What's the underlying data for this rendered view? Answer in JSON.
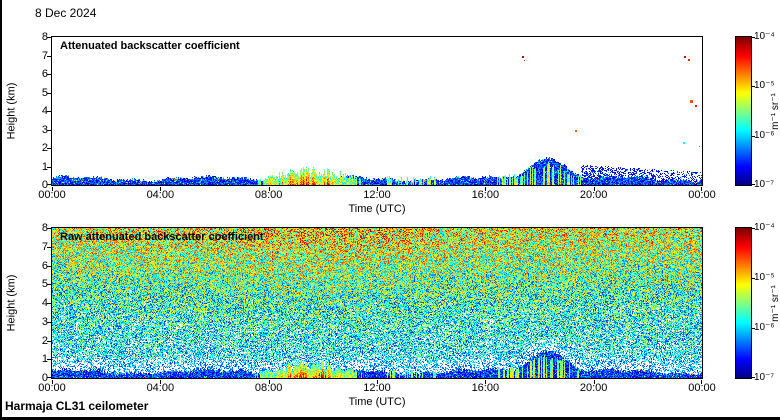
{
  "page": {
    "date_label": "8 Dec 2024",
    "footer_label": "Harmaja CL31 ceilometer",
    "background": "#ffffff",
    "frame_border_color": "#000000"
  },
  "axes": {
    "x_label": "Time (UTC)",
    "y_label": "Height (km)",
    "x_ticks": [
      "00:00",
      "04:00",
      "08:00",
      "12:00",
      "16:00",
      "20:00",
      "00:00"
    ],
    "y_ticks": [
      "0",
      "1",
      "2",
      "3",
      "4",
      "5",
      "6",
      "7",
      "8"
    ],
    "x_range_hours": [
      0,
      24
    ],
    "y_range_km": [
      0,
      8
    ]
  },
  "colorbar": {
    "unit_label": "m⁻¹ sr⁻¹",
    "tick_labels": [
      "10⁻⁴",
      "10⁻⁵",
      "10⁻⁶",
      "10⁻⁷"
    ],
    "range": [
      1e-07,
      0.0001
    ],
    "scale": "log10",
    "colormap": "jet"
  },
  "chart_data": [
    {
      "type": "heatmap",
      "title": "Attenuated backscatter coefficient",
      "style": "clean",
      "seed": 20241208,
      "xlabel": "Time (UTC)",
      "ylabel": "Height (km)",
      "x_ticks": [
        "00:00",
        "04:00",
        "08:00",
        "12:00",
        "16:00",
        "20:00",
        "00:00"
      ],
      "x_range_hours": [
        0,
        24
      ],
      "y_range_km": [
        0,
        8
      ],
      "colorbar_range": [
        1e-07,
        0.0001
      ],
      "colormap": "jet",
      "features": {
        "surface_aerosol_layer": {
          "top_km_mean": 0.45,
          "note": "continuous blue aerosol layer all day"
        },
        "fog_precip_plumes": {
          "hours": [
            7.3,
            11.6
          ],
          "top_km_max": 1.0,
          "note": "strong red/orange columns"
        },
        "midday_surface_patches": {
          "hours": [
            12.3,
            14.2
          ]
        },
        "evening_layer_deepening": {
          "hours": [
            16.4,
            19.5
          ],
          "peak_hour": 18.3,
          "top_km_max": 1.7
        },
        "residual_faint_layer": {
          "hours": [
            19.5,
            24
          ],
          "top_km": 1.1
        },
        "clouds": [
          {
            "hour": 17.35,
            "km": 7.0,
            "v": 0.93,
            "size": 2
          },
          {
            "hour": 17.42,
            "km": 6.75,
            "v": 0.8,
            "size": 1
          },
          {
            "hour": 19.3,
            "km": 3.0,
            "v": 0.78,
            "size": 2
          },
          {
            "hour": 23.35,
            "km": 7.0,
            "v": 0.9,
            "size": 2
          },
          {
            "hour": 23.5,
            "km": 6.8,
            "v": 0.85,
            "size": 2
          },
          {
            "hour": 23.55,
            "km": 4.6,
            "v": 0.8,
            "size": 3
          },
          {
            "hour": 23.75,
            "km": 4.35,
            "v": 0.85,
            "size": 2
          },
          {
            "hour": 23.3,
            "km": 2.3,
            "v": 0.38,
            "size": 2
          },
          {
            "hour": 23.9,
            "km": 2.1,
            "v": 0.3,
            "size": 1
          }
        ]
      }
    },
    {
      "type": "heatmap",
      "title": "Raw attenuated backscatter coefficient",
      "style": "raw",
      "seed": 777,
      "xlabel": "Time (UTC)",
      "ylabel": "Height (km)",
      "x_ticks": [
        "00:00",
        "04:00",
        "08:00",
        "12:00",
        "16:00",
        "20:00",
        "00:00"
      ],
      "x_range_hours": [
        0,
        24
      ],
      "y_range_km": [
        0,
        8
      ],
      "colorbar_range": [
        1e-07,
        0.0001
      ],
      "colormap": "jet",
      "features": {
        "surface_aerosol_layer": {
          "top_km_mean": 0.45
        },
        "fog_precip_plumes": {
          "hours": [
            7.3,
            11.6
          ],
          "top_km_max": 1.0
        },
        "midday_surface_patches": {
          "hours": [
            12.3,
            14.2
          ]
        },
        "evening_layer_deepening": {
          "hours": [
            16.4,
            19.5
          ],
          "peak_hour": 18.3,
          "top_km_max": 1.7
        },
        "noise_floor": {
          "note": "speckle noise increasing with height: white/blue low, green mid, yellow-orange near 8 km"
        },
        "clouds": []
      }
    }
  ]
}
